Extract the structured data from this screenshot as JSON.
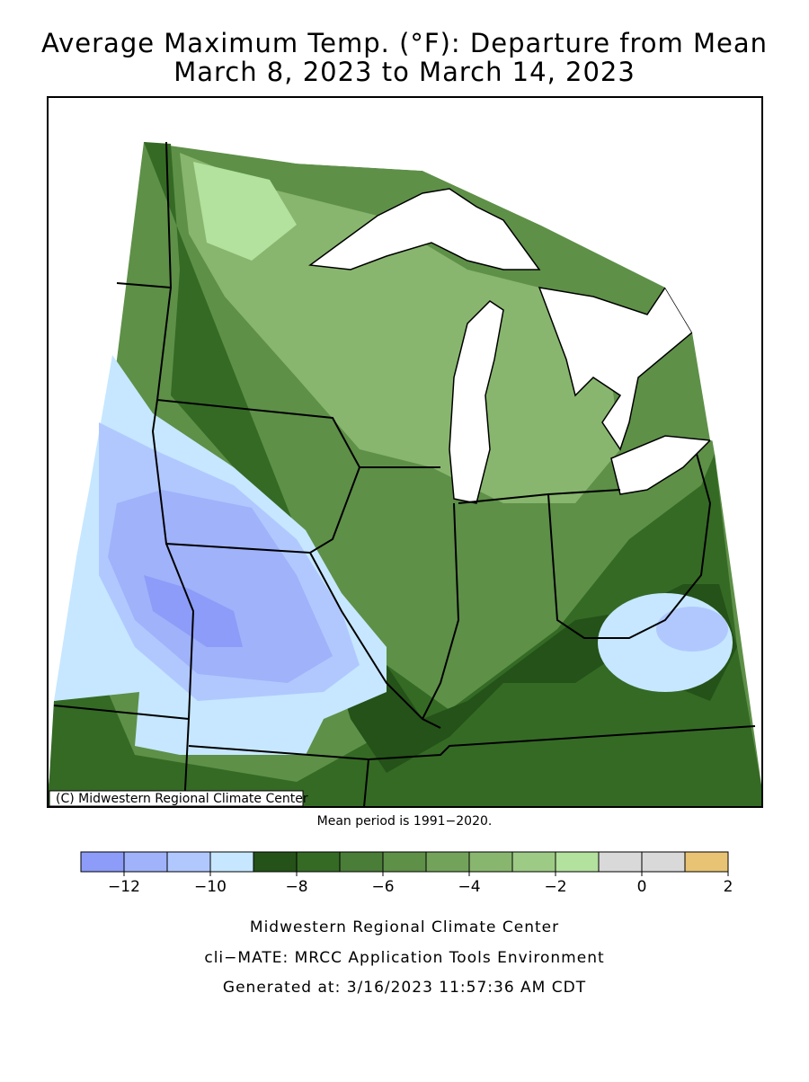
{
  "header": {
    "title": "Average Maximum Temp. (°F): Departure from Mean",
    "subtitle": "March 8, 2023 to March 14, 2023"
  },
  "map": {
    "credit": "(C) Midwestern Regional Climate Center",
    "note": "Mean period is 1991−2020."
  },
  "legend": {
    "levels": [
      -13,
      -12,
      -11,
      -10,
      -9,
      -8,
      -7,
      -6,
      -5,
      -4,
      -3,
      -2,
      -1,
      0,
      1,
      2
    ],
    "colors": [
      "#8c9cf8",
      "#9fb2fa",
      "#b1c8ff",
      "#c6e7ff",
      "#245218",
      "#356a25",
      "#4a7d37",
      "#5e9048",
      "#73a35b",
      "#88b66e",
      "#9dcb86",
      "#b3e19e",
      "#d9d9d9",
      "#d9d9d9",
      "#e8c373"
    ],
    "ticks": [
      {
        "value": -12,
        "label": "−12"
      },
      {
        "value": -10,
        "label": "−10"
      },
      {
        "value": -8,
        "label": "−8"
      },
      {
        "value": -6,
        "label": "−6"
      },
      {
        "value": -4,
        "label": "−4"
      },
      {
        "value": -2,
        "label": "−2"
      },
      0,
      2
    ]
  },
  "footer": {
    "line1": "Midwestern Regional Climate Center",
    "line2": "cli−MATE: MRCC Application Tools Environment",
    "line3": "Generated at: 3/16/2023 11:57:36 AM CDT"
  }
}
